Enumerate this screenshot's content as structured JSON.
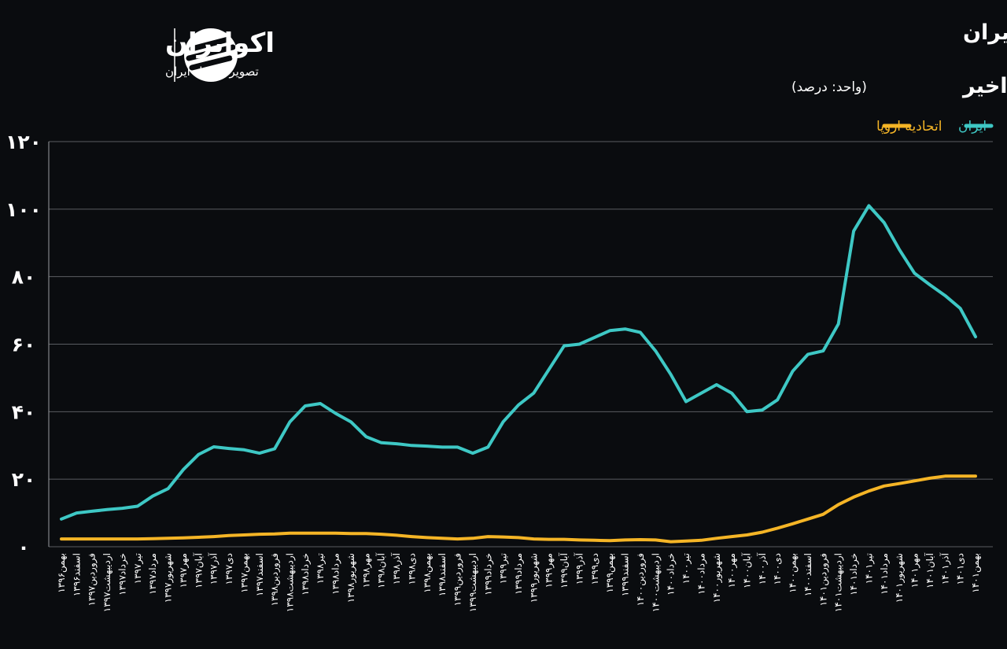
{
  "logo": {
    "name": "اکوایران",
    "tagline": "تصویر اقتصاد ایران"
  },
  "chart_data": {
    "type": "line",
    "title": "مقایسه تورم نقطه ای نان در اتحادیه اروپا و ایران",
    "subtitle": "در شش سال اخیر",
    "unit_note": "(واحد: درصد)",
    "legend": "top-right",
    "grid": true,
    "categories": [
      "بهمن۱۳۹۶",
      "اسفند۱۳۹۶",
      "فروردین۱۳۹۷",
      "اردیبهشت۱۳۹۷",
      "خرداد۱۳۹۷",
      "تیر۱۳۹۷",
      "مرداد۱۳۹۷",
      "شهریور۱۳۹۷",
      "مهر۱۳۹۷",
      "آبان۱۳۹۷",
      "آذر۱۳۹۷",
      "دی۱۳۹۷",
      "بهمن۱۳۹۷",
      "اسفند۱۳۹۷",
      "فروردین۱۳۹۸",
      "اردیبهشت۱۳۹۸",
      "خرداد۱۳۹۸",
      "تیر۱۳۹۸",
      "مرداد۱۳۹۸",
      "شهریور۱۳۹۸",
      "مهر۱۳۹۸",
      "آبان۱۳۹۸",
      "آذر۱۳۹۸",
      "دی۱۳۹۸",
      "بهمن۱۳۹۸",
      "اسفند۱۳۹۸",
      "فروردین۱۳۹۹",
      "اردیبهشت۱۳۹۹",
      "خرداد۱۳۹۹",
      "تیر۱۳۹۹",
      "مرداد۱۳۹۹",
      "شهریور۱۳۹۹",
      "مهر۱۳۹۹",
      "آبان۱۳۹۹",
      "آذر۱۳۹۹",
      "دی۱۳۹۹",
      "بهمن۱۳۹۹",
      "اسفند۱۳۹۹",
      "فروردین۱۴۰۰",
      "اردیبهشت۱۴۰۰",
      "خرداد۱۴۰۰",
      "تیر۱۴۰۰",
      "مرداد۱۴۰۰",
      "شهریور۱۴۰۰",
      "مهر۱۴۰۰",
      "آبان۱۴۰۰",
      "آذر۱۴۰۰",
      "دی۱۴۰۰",
      "بهمن۱۴۰۰",
      "اسفند۱۴۰۰",
      "فروردین۱۴۰۱",
      "اردیبهشت۱۴۰۱",
      "خرداد۱۴۰۱",
      "تیر۱۴۰۱",
      "مرداد۱۴۰۱",
      "شهریور۱۴۰۱",
      "مهر۱۴۰۱",
      "آبان۱۴۰۱",
      "آذر۱۴۰۱",
      "دی۱۴۰۱",
      "بهمن۱۴۰۱"
    ],
    "series": [
      {
        "name": "ایران",
        "color": "#3ec8c5",
        "values": [
          8.2,
          10,
          10.5,
          11,
          11.4,
          12,
          15,
          17.2,
          22.8,
          27.3,
          29.6,
          29.1,
          28.7,
          27.7,
          29,
          37,
          41.7,
          42.4,
          39.5,
          37,
          32.6,
          30.8,
          30.5,
          30,
          29.8,
          29.5,
          29.5,
          27.7,
          29.5,
          37,
          42,
          45.5,
          52.5,
          59.5,
          60,
          62,
          64,
          64.5,
          63.5,
          58,
          51,
          43,
          45.5,
          48,
          45.5,
          40,
          40.5,
          43.5,
          52,
          57,
          58,
          66,
          93.5,
          101,
          96,
          88,
          81,
          77.6,
          74.4,
          70.6,
          62.2
        ]
      },
      {
        "name": "اتحادیه اروپا",
        "color": "#f5b526",
        "values": [
          2.3,
          2.3,
          2.3,
          2.3,
          2.3,
          2.3,
          2.4,
          2.5,
          2.6,
          2.8,
          3,
          3.3,
          3.5,
          3.7,
          3.8,
          4,
          4,
          4,
          4,
          3.9,
          3.9,
          3.7,
          3.4,
          3,
          2.7,
          2.5,
          2.3,
          2.5,
          3,
          2.9,
          2.7,
          2.3,
          2.2,
          2.2,
          2,
          1.9,
          1.8,
          2,
          2.1,
          2,
          1.5,
          1.7,
          1.9,
          2.5,
          3,
          3.5,
          4.3,
          5.5,
          6.8,
          8.2,
          9.6,
          12.5,
          14.7,
          16.5,
          18,
          18.7,
          19.5,
          20.3,
          20.9,
          20.9,
          20.9
        ]
      }
    ],
    "ylim": [
      0,
      120
    ],
    "yticks": [
      {
        "value": 0,
        "label": "۰"
      },
      {
        "value": 20,
        "label": "۲۰"
      },
      {
        "value": 40,
        "label": "۴۰"
      },
      {
        "value": 60,
        "label": "۶۰"
      },
      {
        "value": 80,
        "label": "۸۰"
      },
      {
        "value": 100,
        "label": "۱۰۰"
      },
      {
        "value": 120,
        "label": "۱۲۰"
      }
    ]
  }
}
